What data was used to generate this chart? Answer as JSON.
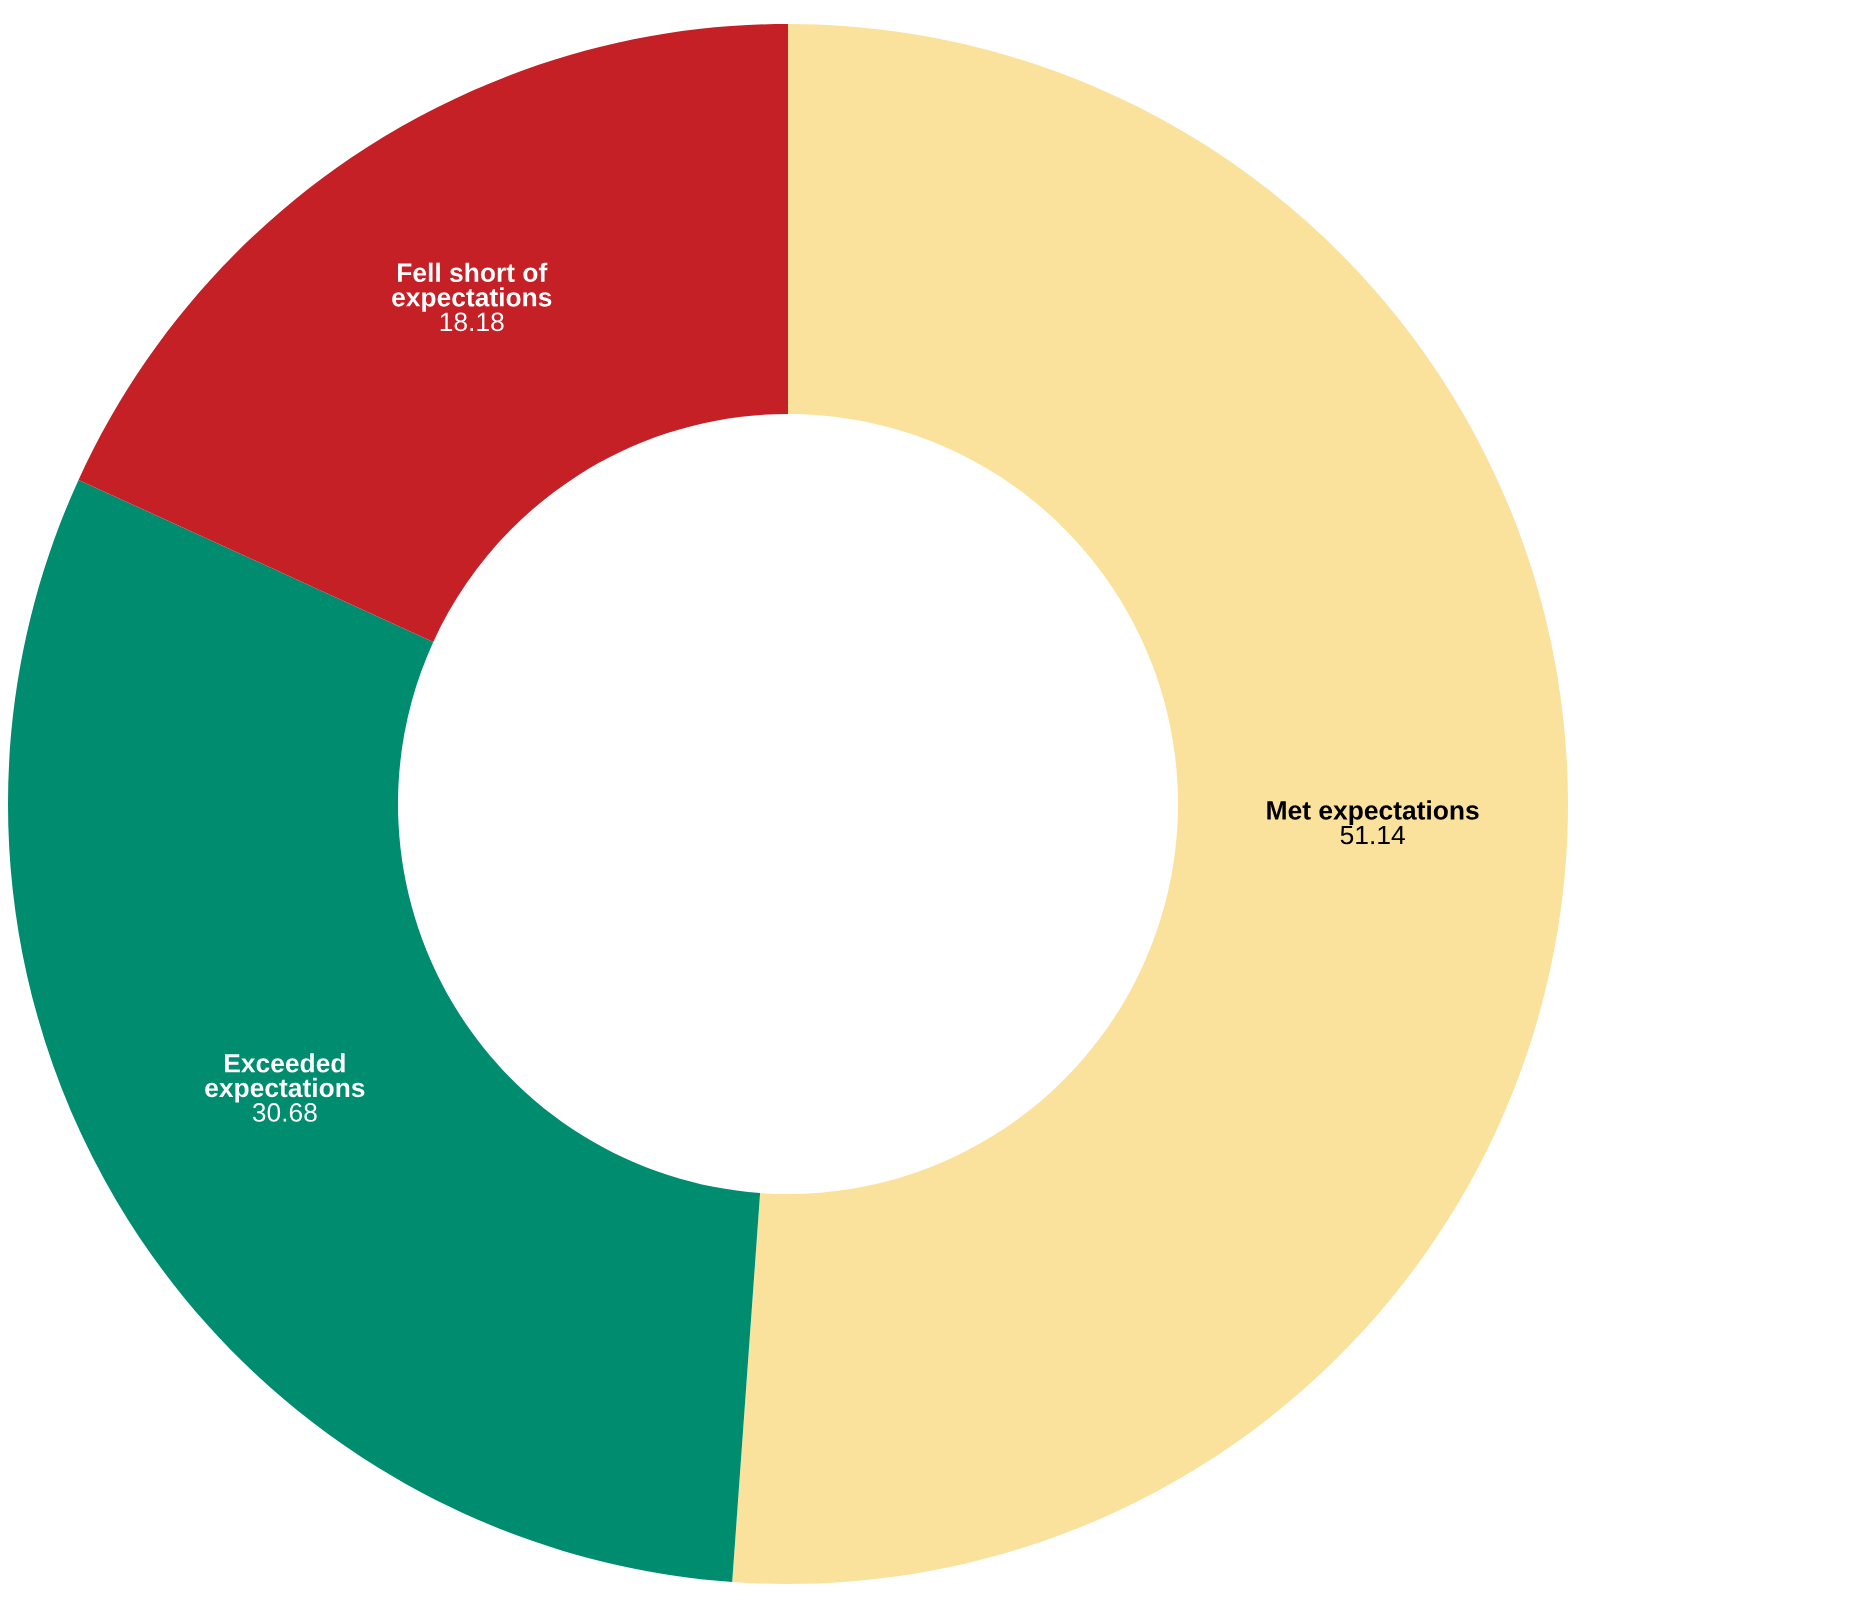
{
  "chart_data": {
    "type": "donut",
    "categories": [
      "Met expectations",
      "Exceeded\nexpectations",
      "Fell short of\nexpectations"
    ],
    "values": [
      51.14,
      30.68,
      18.18
    ],
    "colors": [
      "#fae29c",
      "#008c6e",
      "#c42026"
    ],
    "data_labels": true,
    "legend": false
  }
}
